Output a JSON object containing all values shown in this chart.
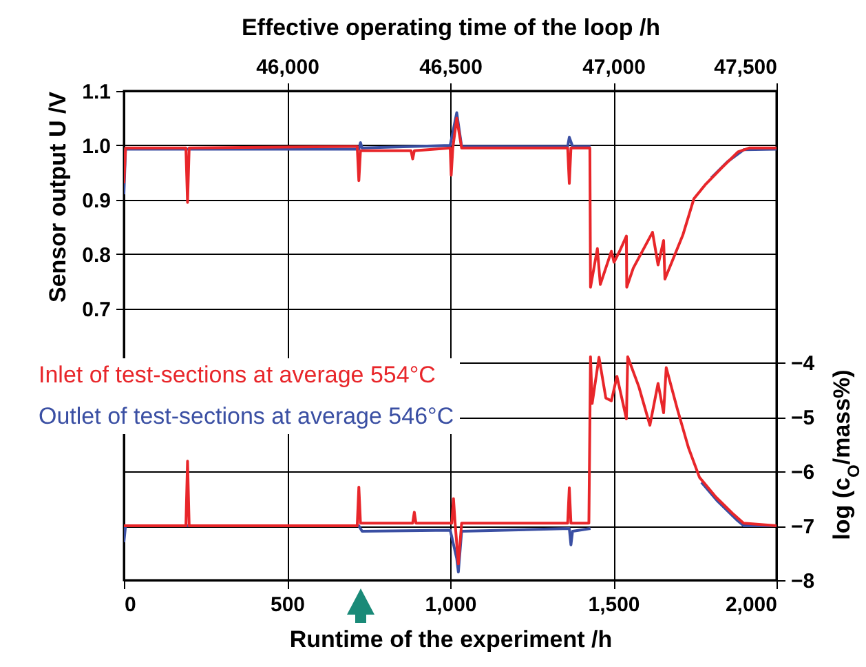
{
  "chart_data": {
    "type": "line",
    "xlabel": "Runtime of the experiment /h",
    "ylabel": "Sensor output U /V",
    "y2label": "log (c$_{O}$/mass%)",
    "x2label": "Effective operating time of the loop /h",
    "xlim": [
      0,
      2000
    ],
    "xticks": [
      0,
      500,
      {
        "value": 1000,
        "label": "1,000"
      },
      {
        "value": 1500,
        "label": "1,500"
      },
      {
        "value": 2000,
        "label": "2,000"
      }
    ],
    "x2lim": [
      45500,
      47500
    ],
    "x2ticks": [
      {
        "value": 46000,
        "label": "46,000"
      },
      {
        "value": 46500,
        "label": "46,500"
      },
      {
        "value": 47000,
        "label": "47,000"
      },
      {
        "value": 47500,
        "label": "47,500"
      }
    ],
    "ylim": [
      0.2,
      1.1
    ],
    "yticks": [
      0.7,
      0.8,
      0.9,
      {
        "value": 1,
        "label": "1.0"
      },
      1.1
    ],
    "y2lim": [
      -8,
      1
    ],
    "y2ticks": [
      -8,
      -7,
      -6,
      -5,
      -4
    ],
    "grid": true,
    "legend": "left",
    "line_style": "solid",
    "series": [
      {
        "name": "Inlet of test-sections at average 554°C",
        "color": "#e8262a",
        "x": [
          0,
          5,
          190,
          195,
          200,
          715,
          720,
          725,
          880,
          885,
          890,
          1000,
          1003,
          1008,
          1020,
          1035,
          1360,
          1365,
          1370,
          1428,
          1430,
          1451,
          1460,
          1494,
          1502,
          1519,
          1540,
          1541,
          1561,
          1620,
          1637,
          1654,
          1658,
          1713,
          1747,
          1781,
          1831,
          1882,
          1916,
          2000
        ],
        "values": [
          0.93,
          0.995,
          0.995,
          0.895,
          0.995,
          0.998,
          0.935,
          0.99,
          0.99,
          0.975,
          0.99,
          0.995,
          0.945,
          0.995,
          1.05,
          0.995,
          0.995,
          0.93,
          0.995,
          0.995,
          0.739,
          0.81,
          0.744,
          0.805,
          0.785,
          0.805,
          0.833,
          0.739,
          0.774,
          0.84,
          0.78,
          0.825,
          0.754,
          0.835,
          0.902,
          0.927,
          0.958,
          0.988,
          0.995,
          0.995
        ]
      },
      {
        "name": "Outlet of test-sections at average 546°C",
        "color": "#3a4fa3",
        "x": [
          0,
          5,
          720,
          725,
          730,
          1000,
          1020,
          1035,
          1360,
          1365,
          1375,
          1430,
          1440,
          1800,
          1850,
          1900,
          2000
        ],
        "values": [
          0.91,
          0.993,
          0.993,
          1.005,
          0.995,
          1.0,
          1.06,
          0.998,
          0.998,
          1.015,
          0.998,
          0.998,
          null,
          0.94,
          0.97,
          0.992,
          0.993
        ]
      },
      {
        "color": "#e8262a",
        "axis": "y2",
        "x": [
          0,
          190,
          195,
          200,
          715,
          720,
          725,
          885,
          890,
          895,
          1005,
          1010,
          1015,
          1025,
          1035,
          1360,
          1365,
          1370,
          1425,
          1430,
          1435,
          1456,
          1477,
          1494,
          1511,
          1540,
          1544,
          1578,
          1612,
          1637,
          1654,
          1662,
          1696,
          1730,
          1764,
          1814,
          1865,
          1899,
          2000
        ],
        "values": [
          -7.0,
          -7.0,
          -5.81,
          -7.0,
          -7.0,
          -6.29,
          -6.95,
          -6.95,
          -6.75,
          -6.95,
          -6.95,
          -6.5,
          -6.95,
          -7.7,
          -6.95,
          -6.95,
          -6.3,
          -6.95,
          -6.95,
          -3.89,
          -4.75,
          -3.9,
          -4.65,
          -4.7,
          -4.25,
          -5.03,
          -3.89,
          -4.44,
          -5.15,
          -4.38,
          -4.92,
          -4.09,
          -4.85,
          -5.56,
          -6.11,
          -6.47,
          -6.77,
          -6.95,
          -7.0
        ]
      },
      {
        "color": "#3a4fa3",
        "axis": "y2",
        "x": [
          0,
          5,
          720,
          730,
          1000,
          1020,
          1025,
          1035,
          1365,
          1370,
          1375,
          1430,
          1440,
          1770,
          1820,
          1880,
          1900,
          2000
        ],
        "values": [
          -7.3,
          -7.0,
          -7.0,
          -7.1,
          -7.08,
          -7.6,
          -7.85,
          -7.1,
          -7.05,
          -7.35,
          -7.1,
          -7.05,
          null,
          -6.2,
          -6.55,
          -6.9,
          -7.0,
          -7.0
        ]
      }
    ]
  }
}
